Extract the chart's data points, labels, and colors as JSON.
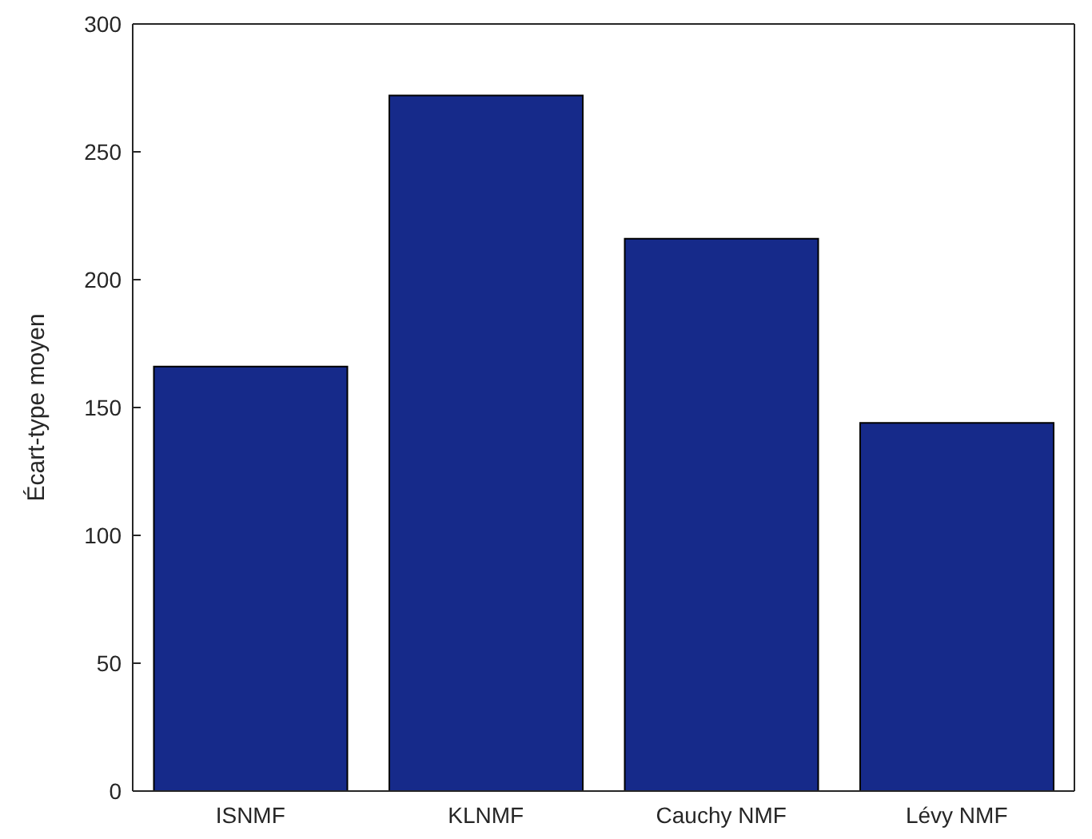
{
  "chart_data": {
    "type": "bar",
    "ylabel": "Écart-type moyen",
    "categories": [
      "ISNMF",
      "KLNMF",
      "Cauchy NMF",
      "Lévy NMF"
    ],
    "values": [
      166,
      272,
      216,
      144
    ],
    "color": "#162a8a",
    "ylim": [
      0,
      300
    ],
    "yticks": [
      0,
      50,
      100,
      150,
      200,
      250,
      300
    ],
    "grid": false
  }
}
